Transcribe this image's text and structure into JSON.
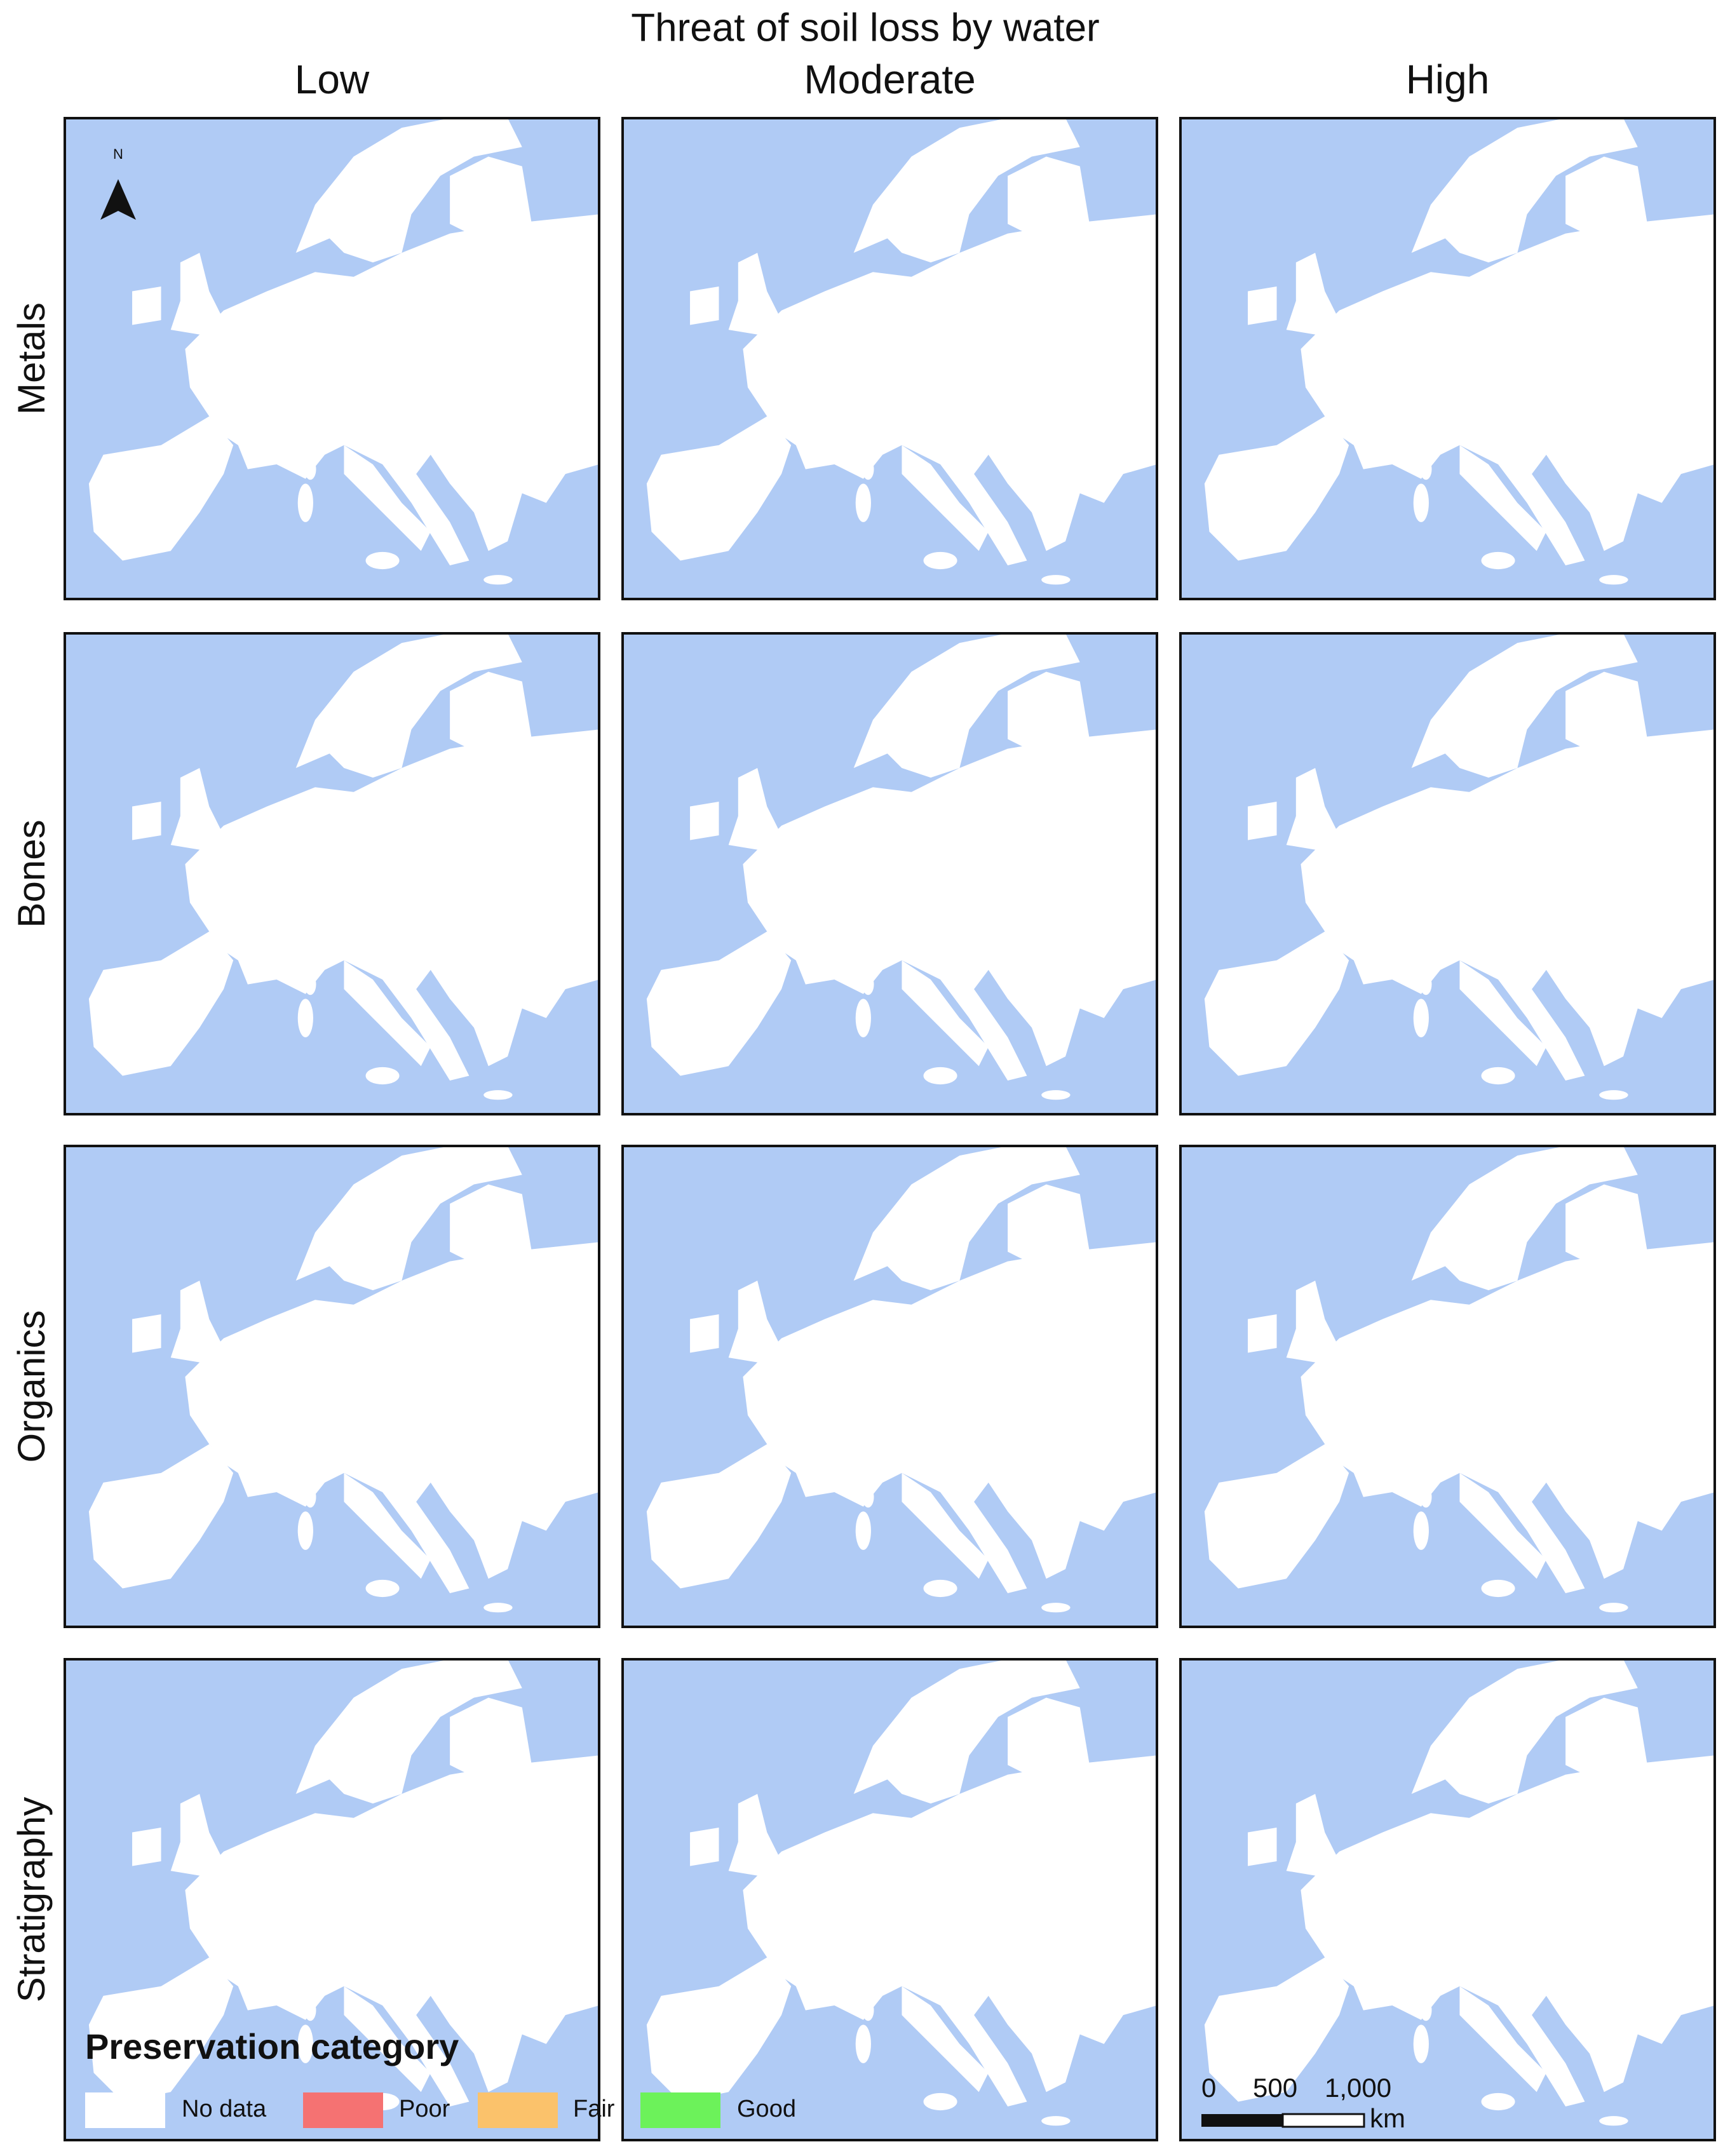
{
  "title": "Threat of soil loss by water",
  "columns": [
    "Low",
    "Moderate",
    "High"
  ],
  "rows": [
    "Metals",
    "Bones",
    "Organics",
    "Stratigraphy"
  ],
  "legend": {
    "title": "Preservation category",
    "items": [
      {
        "label": "No data",
        "color": "#ffffff"
      },
      {
        "label": "Poor",
        "color": "#f57272"
      },
      {
        "label": "Fair",
        "color": "#fbc26b"
      },
      {
        "label": "Good",
        "color": "#6cf25a"
      }
    ]
  },
  "scale_bar": {
    "ticks": [
      "0",
      "500",
      "1,000"
    ],
    "unit": "km"
  },
  "north_arrow": "N"
}
